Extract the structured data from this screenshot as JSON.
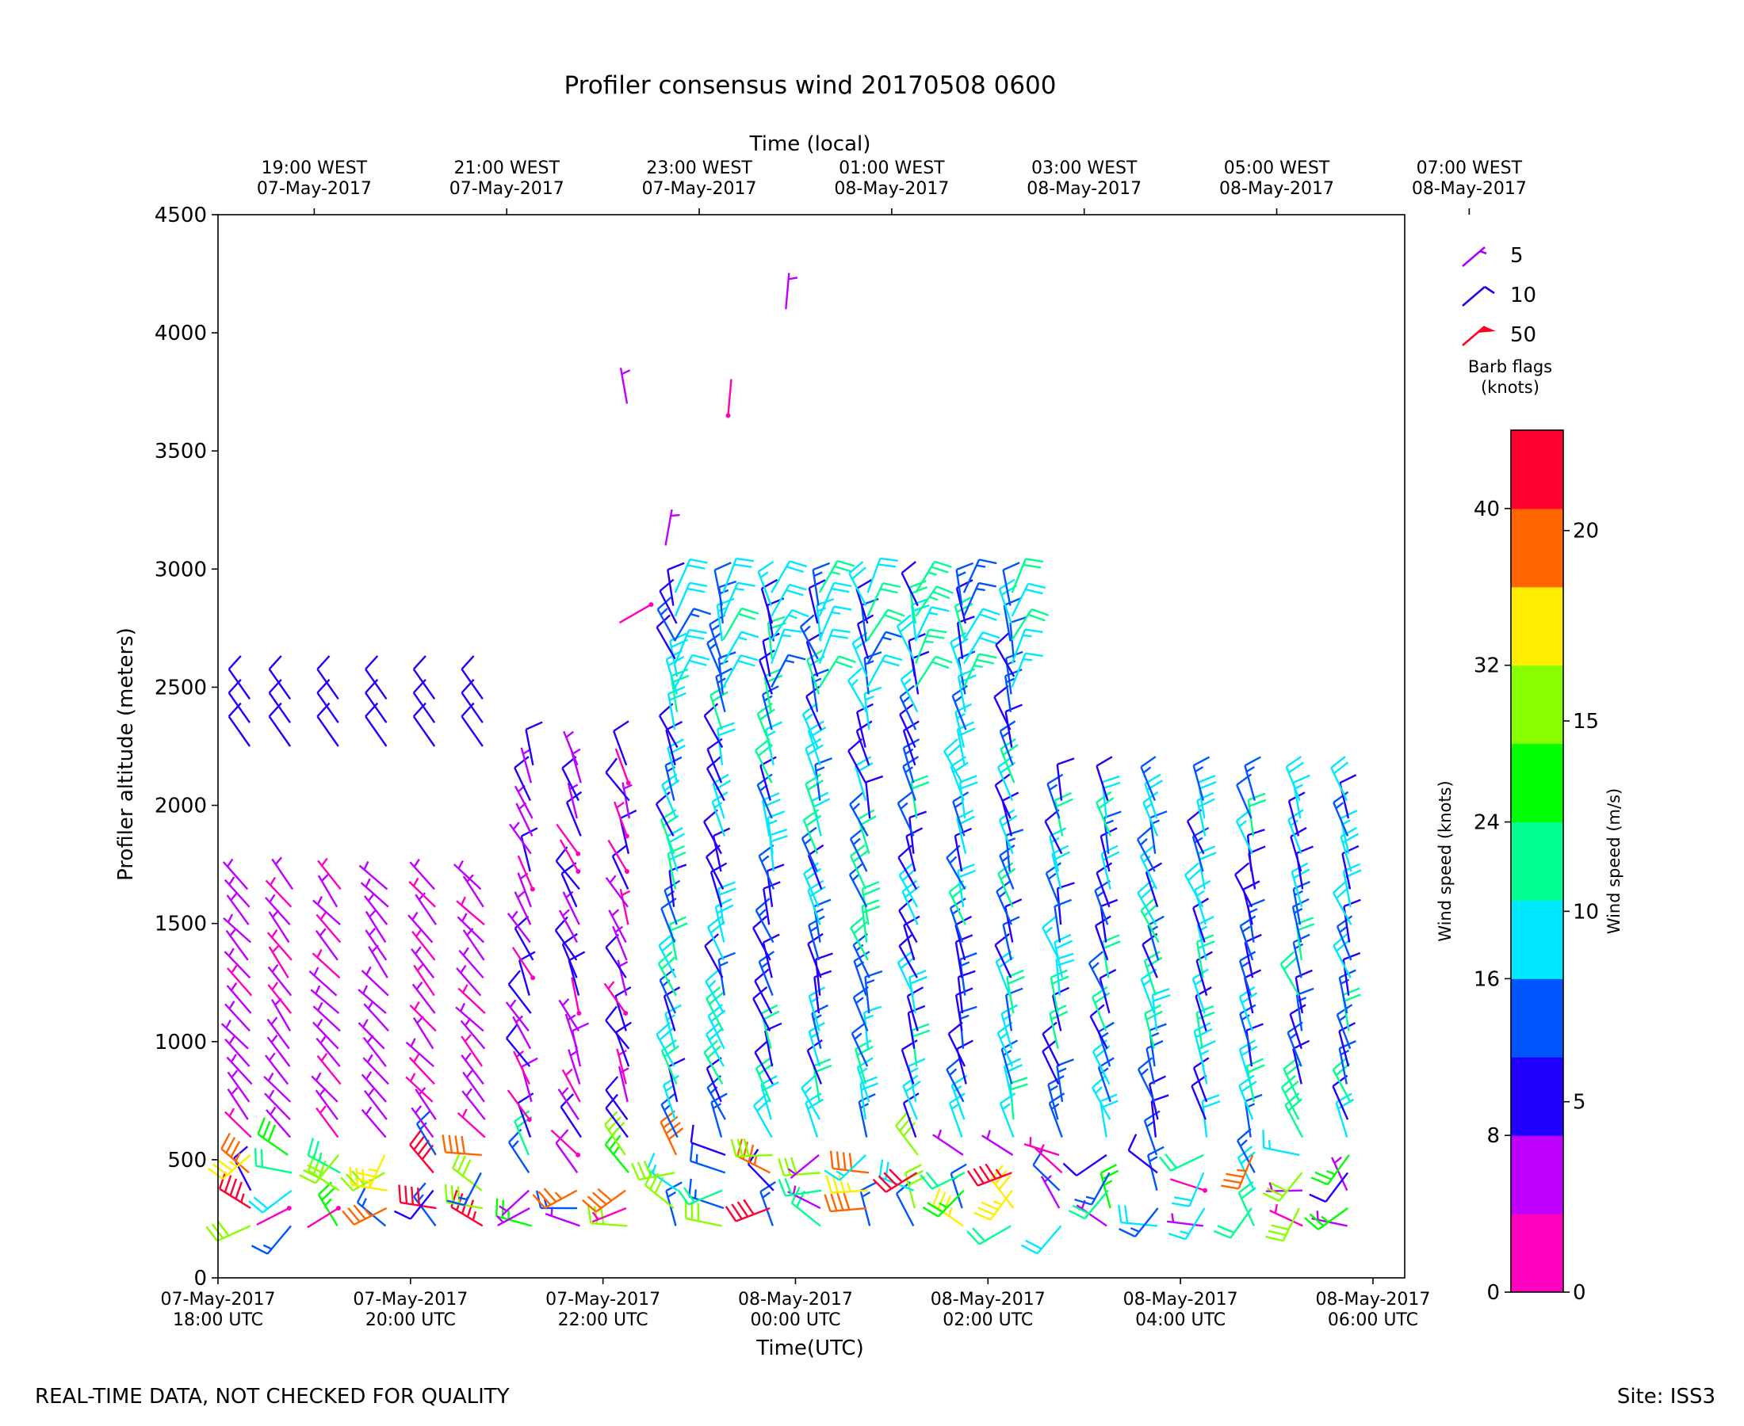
{
  "chart_data": {
    "type": "wind_barb",
    "title": "Profiler consensus wind 20170508 0600",
    "xlabel": "Time(UTC)",
    "xlabel_top": "Time (local)",
    "ylabel": "Profiler altitude (meters)",
    "ylim": [
      0,
      4500
    ],
    "yticks": [
      "0",
      "500",
      "1000",
      "1500",
      "2000",
      "2500",
      "3000",
      "3500",
      "4000",
      "4500"
    ],
    "bottom_ticks": [
      {
        "date": "07-May-2017",
        "time": "18:00 UTC"
      },
      {
        "date": "07-May-2017",
        "time": "20:00 UTC"
      },
      {
        "date": "07-May-2017",
        "time": "22:00 UTC"
      },
      {
        "date": "08-May-2017",
        "time": "00:00 UTC"
      },
      {
        "date": "08-May-2017",
        "time": "02:00 UTC"
      },
      {
        "date": "08-May-2017",
        "time": "04:00 UTC"
      },
      {
        "date": "08-May-2017",
        "time": "06:00 UTC"
      }
    ],
    "top_ticks": [
      {
        "time": "19:00 WEST",
        "date": "07-May-2017"
      },
      {
        "time": "21:00 WEST",
        "date": "07-May-2017"
      },
      {
        "time": "23:00 WEST",
        "date": "07-May-2017"
      },
      {
        "time": "01:00 WEST",
        "date": "08-May-2017"
      },
      {
        "time": "03:00 WEST",
        "date": "08-May-2017"
      },
      {
        "time": "05:00 WEST",
        "date": "08-May-2017"
      },
      {
        "time": "07:00 WEST",
        "date": "08-May-2017"
      }
    ],
    "time_hours_range": [
      18.0,
      30.33
    ],
    "legend": {
      "items": [
        {
          "label": "5",
          "color": "#aa00ff",
          "kind": "half"
        },
        {
          "label": "10",
          "color": "#2200ee",
          "kind": "full"
        },
        {
          "label": "50",
          "color": "#ff0022",
          "kind": "flag"
        }
      ],
      "title_line1": "Barb flags",
      "title_line2": "(knots)"
    },
    "colorbar": {
      "label_left": "Wind speed (knots)",
      "label_right": "Wind speed (m/s)",
      "knots_max": 44,
      "knot_ticks": [
        "0",
        "8",
        "16",
        "24",
        "32",
        "40"
      ],
      "ms_ticks": [
        "0",
        "5",
        "10",
        "15",
        "20"
      ],
      "colors": [
        "#ff00c0",
        "#c000ff",
        "#2200ff",
        "#0055ff",
        "#00e8ff",
        "#00ff90",
        "#00ff00",
        "#88ff00",
        "#ffee00",
        "#ff6600",
        "#ff0030"
      ]
    },
    "columns": [
      {
        "t": 18.33,
        "profile": "low_upper"
      },
      {
        "t": 18.75,
        "profile": "low_upper"
      },
      {
        "t": 19.25,
        "profile": "low_upper"
      },
      {
        "t": 19.75,
        "profile": "low_upper"
      },
      {
        "t": 20.25,
        "profile": "low_upper"
      },
      {
        "t": 20.75,
        "profile": "low_upper"
      },
      {
        "t": 21.25,
        "profile": "mixed"
      },
      {
        "t": 21.75,
        "profile": "mixed"
      },
      {
        "t": 22.25,
        "profile": "mixed"
      },
      {
        "t": 22.75,
        "profile": "high"
      },
      {
        "t": 23.25,
        "profile": "high"
      },
      {
        "t": 23.75,
        "profile": "high"
      },
      {
        "t": 24.25,
        "profile": "high"
      },
      {
        "t": 24.75,
        "profile": "high"
      },
      {
        "t": 25.25,
        "profile": "high"
      },
      {
        "t": 25.75,
        "profile": "high"
      },
      {
        "t": 26.25,
        "profile": "high"
      },
      {
        "t": 26.75,
        "profile": "mid"
      },
      {
        "t": 27.25,
        "profile": "mid"
      },
      {
        "t": 27.75,
        "profile": "mid"
      },
      {
        "t": 28.25,
        "profile": "mid"
      },
      {
        "t": 28.75,
        "profile": "mid"
      },
      {
        "t": 29.25,
        "profile": "mid"
      },
      {
        "t": 29.75,
        "profile": "mid"
      }
    ]
  },
  "footer": {
    "left": "REAL-TIME DATA, NOT CHECKED FOR QUALITY",
    "right": "Site: ISS3"
  }
}
